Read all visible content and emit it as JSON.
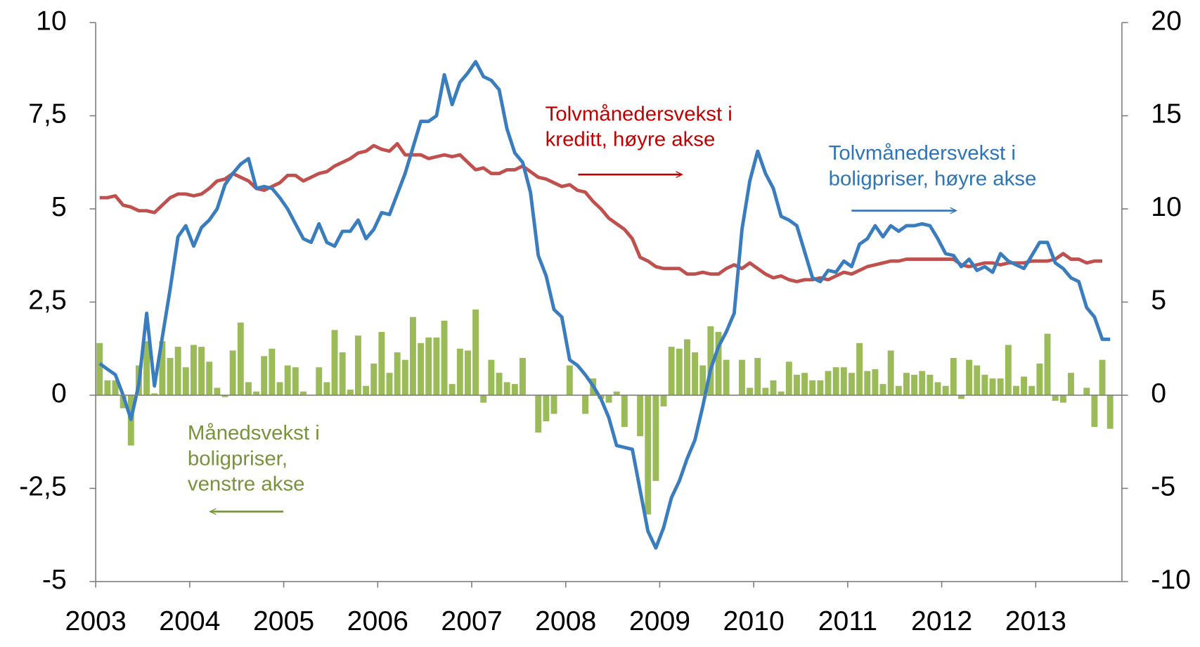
{
  "chart_data": {
    "type": "bar-line",
    "categories": [
      "2003",
      null,
      null,
      null,
      null,
      null,
      null,
      null,
      null,
      null,
      null,
      null,
      "2004",
      null,
      null,
      null,
      null,
      null,
      null,
      null,
      null,
      null,
      null,
      null,
      "2005",
      null,
      null,
      null,
      null,
      null,
      null,
      null,
      null,
      null,
      null,
      null,
      "2006",
      null,
      null,
      null,
      null,
      null,
      null,
      null,
      null,
      null,
      null,
      null,
      "2007",
      null,
      null,
      null,
      null,
      null,
      null,
      null,
      null,
      null,
      null,
      null,
      "2008",
      null,
      null,
      null,
      null,
      null,
      null,
      null,
      null,
      null,
      null,
      null,
      "2009",
      null,
      null,
      null,
      null,
      null,
      null,
      null,
      null,
      null,
      null,
      null,
      "2010",
      null,
      null,
      null,
      null,
      null,
      null,
      null,
      null,
      null,
      null,
      null,
      "2011",
      null,
      null,
      null,
      null,
      null,
      null,
      null,
      null,
      null,
      null,
      null,
      "2012",
      null,
      null,
      null,
      null,
      null,
      null,
      null,
      null,
      null,
      null,
      null,
      "2013",
      null,
      null,
      null,
      null,
      null,
      null,
      null,
      null,
      null
    ],
    "ylim": [
      -5,
      10
    ],
    "yticks": [
      -5,
      {
        "value": -2.5,
        "label": "-2,5"
      },
      0,
      {
        "value": 2.5,
        "label": "2,5"
      },
      5,
      {
        "value": 7.5,
        "label": "7,5"
      },
      10
    ],
    "y2lim": [
      -10,
      20
    ],
    "y2ticks": [
      -10,
      -5,
      0,
      5,
      10,
      15,
      20
    ],
    "grid": false,
    "series": [
      {
        "type": "bar",
        "color": "#9bbb59",
        "label_color": "#77933c",
        "label": [
          "Månedsvekst i",
          "boligpriser,",
          "venstre akse"
        ],
        "values": [
          1.4,
          0.4,
          0.4,
          -0.35,
          -1.35,
          0.8,
          1.45,
          0.05,
          1.45,
          1.0,
          1.3,
          0.75,
          1.35,
          1.3,
          0.9,
          0.2,
          -0.05,
          1.2,
          1.95,
          0.35,
          0.1,
          1.05,
          1.25,
          0.35,
          0.8,
          0.75,
          0.1,
          0.0,
          0.75,
          0.35,
          1.75,
          1.15,
          0.15,
          1.6,
          0.25,
          0.85,
          1.7,
          0.6,
          1.15,
          0.95,
          2.1,
          1.4,
          1.55,
          1.55,
          2.0,
          0.3,
          1.25,
          1.2,
          2.3,
          -0.2,
          0.95,
          0.6,
          0.35,
          0.3,
          1.0,
          0,
          -1.0,
          -0.7,
          -0.5,
          0,
          0.8,
          0,
          -0.5,
          0.45,
          -0.1,
          -0.2,
          0.1,
          -0.85,
          0,
          -1.1,
          -3.2,
          -2.3,
          -0.3,
          1.3,
          1.25,
          1.5,
          1.15,
          0.8,
          1.85,
          1.7,
          0.95,
          0.0,
          0.95,
          0.2,
          1.0,
          0.2,
          0.4,
          0.1,
          0.9,
          0.55,
          0.6,
          0.4,
          0.4,
          0.65,
          0.75,
          0.75,
          0.6,
          1.4,
          0.65,
          0.7,
          0.3,
          1.2,
          0.25,
          0.6,
          0.55,
          0.65,
          0.55,
          0.35,
          0.25,
          1.0,
          -0.1,
          0.95,
          0.8,
          0.55,
          0.45,
          0.45,
          1.35,
          0.25,
          0.5,
          0.25,
          0.85,
          1.65,
          -0.15,
          -0.2,
          0.6,
          0,
          0.2,
          -0.85,
          0.95,
          -0.9
        ]
      },
      {
        "type": "line",
        "axis": "y2",
        "color": "#c0504d",
        "label_color": "#c00000",
        "label": [
          "Tolvmånedersvekst i",
          "kreditt, høyre akse"
        ],
        "values": [
          10.6,
          10.6,
          10.7,
          10.2,
          10.1,
          9.9,
          9.9,
          9.8,
          10.2,
          10.6,
          10.8,
          10.8,
          10.7,
          10.8,
          11.1,
          11.5,
          11.6,
          11.9,
          11.7,
          11.5,
          11.1,
          11.0,
          11.2,
          11.4,
          11.8,
          11.8,
          11.5,
          11.7,
          11.9,
          12.0,
          12.3,
          12.5,
          12.7,
          13.0,
          13.1,
          13.4,
          13.2,
          13.1,
          13.5,
          12.9,
          12.9,
          12.9,
          12.7,
          12.8,
          12.9,
          12.8,
          12.9,
          12.5,
          12.1,
          12.2,
          11.9,
          11.9,
          12.1,
          12.1,
          12.3,
          12.0,
          11.7,
          11.6,
          11.4,
          11.2,
          11.3,
          11.0,
          10.9,
          10.4,
          10.0,
          9.5,
          9.2,
          8.9,
          8.4,
          7.4,
          7.2,
          6.9,
          6.8,
          6.8,
          6.8,
          6.5,
          6.5,
          6.6,
          6.5,
          6.5,
          6.8,
          7.0,
          6.8,
          7.1,
          6.8,
          6.5,
          6.3,
          6.4,
          6.2,
          6.1,
          6.2,
          6.2,
          6.3,
          6.2,
          6.4,
          6.6,
          6.5,
          6.7,
          6.9,
          7.0,
          7.1,
          7.2,
          7.2,
          7.3,
          7.3,
          7.3,
          7.3,
          7.3,
          7.3,
          7.3,
          7.0,
          6.9,
          7.0,
          7.1,
          7.1,
          7.0,
          7.1,
          7.1,
          7.1,
          7.2,
          7.2,
          7.2,
          7.3,
          7.6,
          7.3,
          7.3,
          7.1,
          7.2,
          7.2,
          null
        ]
      },
      {
        "type": "line",
        "axis": "y2",
        "color": "#3a7dbf",
        "label_color": "#2e75b6",
        "label": [
          "Tolvmånedersvekst i",
          "boligpriser, høyre akse"
        ],
        "values": [
          1.7,
          1.4,
          1.1,
          0,
          -1.3,
          0.6,
          4.4,
          0.5,
          3.1,
          5.7,
          8.5,
          9.1,
          8.0,
          9.0,
          9.4,
          10.0,
          11.3,
          11.9,
          12.4,
          12.7,
          11.1,
          11.2,
          11.1,
          10.6,
          10.0,
          9.2,
          8.4,
          8.2,
          9.2,
          8.2,
          8.0,
          8.8,
          8.8,
          9.4,
          8.4,
          8.9,
          9.8,
          9.7,
          10.8,
          11.9,
          13.3,
          14.7,
          14.7,
          15.0,
          17.2,
          15.6,
          16.8,
          17.3,
          17.9,
          17.1,
          16.9,
          16.4,
          14.3,
          13.0,
          12.5,
          10.9,
          7.5,
          6.4,
          4.6,
          4.2,
          1.9,
          1.6,
          1.1,
          0.5,
          -0.2,
          -1.2,
          -2.7,
          -2.8,
          -2.9,
          -5.1,
          -7.3,
          -8.2,
          -7.1,
          -5.5,
          -4.6,
          -3.4,
          -2.4,
          -0.6,
          1.4,
          2.6,
          3.4,
          4.4,
          8.9,
          11.5,
          13.1,
          11.9,
          11.1,
          9.6,
          9.4,
          9.1,
          7.7,
          6.3,
          6.1,
          6.7,
          6.6,
          7.2,
          6.9,
          8.1,
          8.4,
          9.1,
          8.5,
          9.1,
          8.8,
          9.1,
          9.1,
          9.2,
          9.1,
          8.4,
          7.6,
          7.5,
          6.9,
          7.3,
          6.7,
          6.9,
          6.6,
          7.6,
          7.2,
          7.0,
          6.8,
          7.5,
          8.2,
          8.2,
          7.1,
          6.8,
          6.3,
          6.1,
          4.7,
          4.2,
          3.0,
          3.0
        ]
      }
    ]
  }
}
